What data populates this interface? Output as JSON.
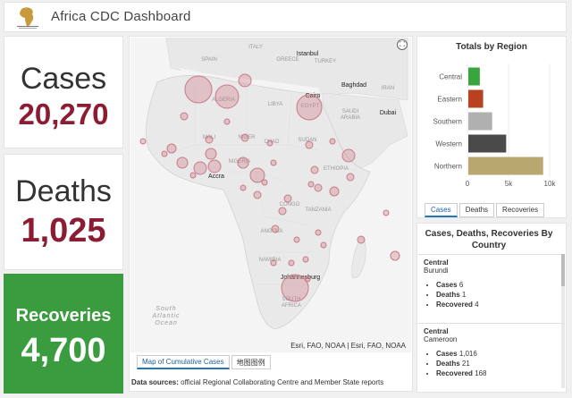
{
  "header": {
    "title": "Africa CDC Dashboard"
  },
  "cards": {
    "cases": {
      "label": "Cases",
      "value": "20,270"
    },
    "deaths": {
      "label": "Deaths",
      "value": "1,025"
    },
    "recoveries": {
      "label": "Recoveries",
      "value": "4,700",
      "background": "#3a9c3f"
    }
  },
  "map": {
    "labels": {
      "spain": "SPAIN",
      "italy": "ITALY",
      "greece": "GREECE",
      "turkey": "TURKEY",
      "istanbul": "Istanbul",
      "baghdad": "Baghdad",
      "iran": "IRAN",
      "cairo": "Cairo",
      "dubai": "Dubai",
      "saudi_arabia": "SAUDI\nARABIA",
      "libya": "LIBYA",
      "egypt": "EGYPT",
      "algeria": "ALGERIA",
      "mali": "MALI",
      "niger": "NIGER",
      "chad": "CHAD",
      "sudan": "SUDAN",
      "nigeria": "NIGERIA",
      "ethiopia": "ETHIOPIA",
      "accra": "Accra",
      "congo": "CONGO",
      "tanzania": "TANZANIA",
      "angola": "ANGOLA",
      "namibia": "NAMIBIA",
      "johannesburg": "Johannesburg",
      "south_africa": "SOUTH\nAFRICA",
      "ocean": "South\nAtlantic\nOcean"
    },
    "attribution": "Esri, FAO, NOAA | Esri, FAO, NOAA",
    "tabs": [
      "Map of Cumulative Cases",
      "地图图例"
    ],
    "active_tab": 0
  },
  "data_sources": {
    "label": "Data sources:",
    "text": "official Regional Collaborating Centre and Member State reports"
  },
  "region_chart": {
    "title": "Totals by Region",
    "tabs": [
      "Cases",
      "Deaths",
      "Recoveries"
    ],
    "active_tab": 0
  },
  "chart_data": {
    "type": "bar",
    "orientation": "horizontal",
    "title": "Totals by Region",
    "categories": [
      "Central",
      "Eastern",
      "Southern",
      "Western",
      "Northern"
    ],
    "values": [
      1400,
      1800,
      2900,
      4600,
      9100
    ],
    "colors": [
      "#3aa53f",
      "#b8421f",
      "#b0b0b0",
      "#4a4a4a",
      "#b8a870"
    ],
    "x_ticks": [
      "0",
      "5k",
      "10k"
    ],
    "xlim": [
      0,
      10000
    ]
  },
  "country_list": {
    "title": "Cases, Deaths, Recoveries By Country",
    "items": [
      {
        "region": "Central",
        "country": "Burundi",
        "cases": "6",
        "deaths": "1",
        "recovered": "4"
      },
      {
        "region": "Central",
        "country": "Cameroon",
        "cases": "1,016",
        "deaths": "21",
        "recovered": "168"
      }
    ],
    "labels": {
      "cases": "Cases",
      "deaths": "Deaths",
      "recovered": "Recovered"
    }
  }
}
